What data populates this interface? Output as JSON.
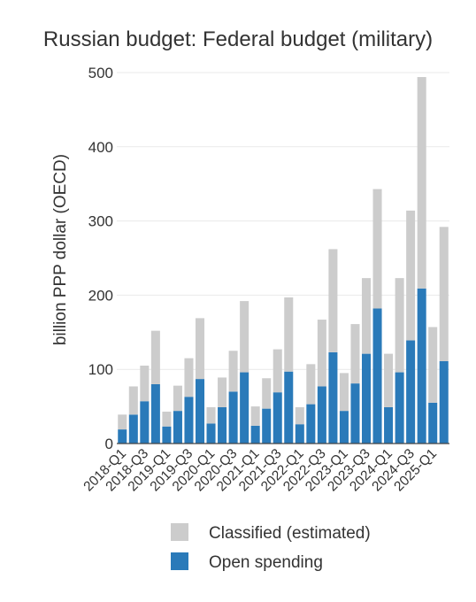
{
  "chart_data": {
    "type": "bar",
    "stacked": true,
    "title": "Russian budget: Federal budget (military)",
    "ylabel": "billion PPP dollar (OECD)",
    "xlabel": "",
    "ylim": [
      0,
      500
    ],
    "yticks": [
      "0",
      "100",
      "200",
      "300",
      "400",
      "500"
    ],
    "grid": true,
    "legend_position": "bottom",
    "categories": [
      "2018-Q1",
      "2018-Q2",
      "2018-Q3",
      "2018-Q4",
      "2019-Q1",
      "2019-Q2",
      "2019-Q3",
      "2019-Q4",
      "2020-Q1",
      "2020-Q2",
      "2020-Q3",
      "2020-Q4",
      "2021-Q1",
      "2021-Q2",
      "2021-Q3",
      "2021-Q4",
      "2022-Q1",
      "2022-Q2",
      "2022-Q3",
      "2022-Q4",
      "2023-Q1",
      "2023-Q2",
      "2023-Q3",
      "2023-Q4",
      "2024-Q1",
      "2024-Q2",
      "2024-Q3",
      "2024-Q4",
      "2025-Q1",
      "2025-Q2"
    ],
    "tick_labels": [
      "2018-Q1",
      "2018-Q3",
      "2019-Q1",
      "2019-Q3",
      "2020-Q1",
      "2020-Q3",
      "2021-Q1",
      "2021-Q3",
      "2022-Q1",
      "2022-Q3",
      "2023-Q1",
      "2023-Q3",
      "2024-Q1",
      "2024-Q3",
      "2025-Q1"
    ],
    "series": [
      {
        "name": "Open spending",
        "color": "#2a7ab9",
        "values": [
          19,
          39,
          57,
          80,
          23,
          44,
          63,
          87,
          27,
          49,
          70,
          96,
          24,
          47,
          69,
          97,
          26,
          53,
          77,
          123,
          44,
          81,
          121,
          182,
          49,
          96,
          139,
          209,
          55,
          111
        ]
      },
      {
        "name": "Classified (estimated)",
        "color": "#cccccc",
        "values": [
          20,
          38,
          48,
          72,
          20,
          34,
          52,
          82,
          22,
          40,
          55,
          96,
          26,
          41,
          58,
          100,
          23,
          54,
          90,
          139,
          51,
          80,
          102,
          161,
          72,
          127,
          175,
          285,
          102,
          181
        ]
      }
    ],
    "legend": [
      "Classified (estimated)",
      "Open spending"
    ]
  }
}
